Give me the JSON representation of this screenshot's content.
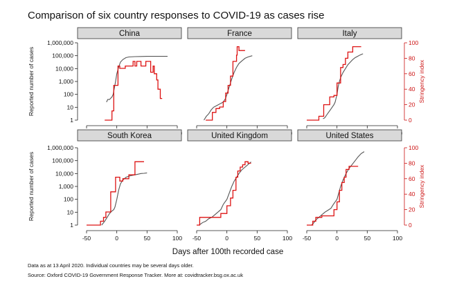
{
  "chart_data": {
    "type": "line",
    "title": "Comparison of six country responses to COVID-19 as cases rise",
    "xlabel": "Days after 100th recorded case",
    "ylabel_left": "Reported number of cases",
    "ylabel_right": "Stringency index",
    "x_ticks": [
      "-50",
      "0",
      "50",
      "100"
    ],
    "x_range": [
      -50,
      100
    ],
    "y_left_ticks": [
      "1",
      "10",
      "100",
      "1,000",
      "10,000",
      "100,000",
      "1,000,000"
    ],
    "y_left_range_log10": [
      0,
      6
    ],
    "y_right_ticks": [
      "0",
      "20",
      "40",
      "60",
      "80",
      "100"
    ],
    "y_right_range": [
      0,
      100
    ],
    "colors": {
      "cases": "#555555",
      "stringency": "#dd1111",
      "strip": "#d9d9d9",
      "right_axis": "#cc1111"
    },
    "panels": [
      {
        "name": "China",
        "cases": {
          "x": [
            -17,
            -15,
            -12,
            -10,
            -8,
            -6,
            -4,
            -2,
            0,
            3,
            6,
            10,
            15,
            20,
            30,
            40,
            50,
            60,
            70,
            84
          ],
          "y_log10": [
            1.4,
            1.6,
            1.6,
            1.7,
            1.8,
            2.0,
            2.5,
            3.0,
            3.6,
            4.1,
            4.5,
            4.7,
            4.85,
            4.9,
            4.93,
            4.94,
            4.95,
            4.95,
            4.95,
            4.95
          ]
        },
        "stringency": {
          "x": [
            -20,
            -8,
            -8,
            -5,
            -5,
            2,
            2,
            5,
            5,
            14,
            14,
            27,
            27,
            30,
            30,
            33,
            33,
            40,
            40,
            48,
            48,
            56,
            56,
            60,
            60,
            62,
            62,
            66,
            66,
            68,
            68,
            72,
            72,
            75
          ],
          "y": [
            0,
            0,
            12,
            12,
            45,
            45,
            70,
            70,
            67,
            67,
            70,
            70,
            76,
            76,
            70,
            70,
            76,
            76,
            70,
            70,
            76,
            76,
            62,
            62,
            70,
            70,
            60,
            60,
            52,
            52,
            40,
            40,
            28,
            28
          ]
        }
      },
      {
        "name": "France",
        "cases": {
          "x": [
            -38,
            -34,
            -30,
            -26,
            -22,
            -18,
            -14,
            -10,
            -6,
            -2,
            0,
            4,
            8,
            12,
            16,
            20,
            25,
            30,
            35,
            42
          ],
          "y_log10": [
            0.0,
            0.3,
            0.5,
            0.8,
            1.0,
            1.1,
            1.2,
            1.3,
            1.4,
            1.7,
            2.0,
            2.6,
            3.2,
            3.7,
            4.1,
            4.4,
            4.6,
            4.8,
            4.9,
            5.0
          ]
        },
        "stringency": {
          "x": [
            -35,
            -24,
            -24,
            -18,
            -18,
            -12,
            -12,
            -6,
            -6,
            -2,
            -2,
            2,
            2,
            6,
            6,
            10,
            10,
            16,
            16,
            17,
            17,
            20,
            20,
            30
          ],
          "y": [
            0,
            0,
            10,
            10,
            15,
            15,
            17,
            17,
            24,
            24,
            35,
            35,
            45,
            45,
            57,
            57,
            76,
            76,
            84,
            84,
            95,
            95,
            90,
            90
          ]
        }
      },
      {
        "name": "Italy",
        "cases": {
          "x": [
            -23,
            -20,
            -17,
            -14,
            -11,
            -8,
            -5,
            -3,
            0,
            2,
            4,
            6,
            10,
            14,
            18,
            22,
            26,
            30,
            34,
            38,
            43
          ],
          "y_log10": [
            0.1,
            0.2,
            0.4,
            0.6,
            0.8,
            1.0,
            1.2,
            1.4,
            2.0,
            2.6,
            3.0,
            3.3,
            3.7,
            4.0,
            4.3,
            4.5,
            4.7,
            4.85,
            4.95,
            5.05,
            5.15
          ]
        },
        "stringency": {
          "x": [
            -50,
            -30,
            -30,
            -22,
            -22,
            -12,
            -12,
            -5,
            -5,
            0,
            0,
            6,
            6,
            10,
            10,
            14,
            14,
            18,
            18,
            26,
            26,
            40
          ],
          "y": [
            0,
            0,
            5,
            5,
            20,
            20,
            30,
            30,
            32,
            32,
            48,
            48,
            68,
            68,
            72,
            72,
            80,
            80,
            88,
            88,
            95,
            95
          ]
        }
      },
      {
        "name": "South Korea",
        "cases": {
          "x": [
            -25,
            -20,
            -16,
            -12,
            -8,
            -5,
            -3,
            0,
            3,
            6,
            10,
            15,
            20,
            25,
            30,
            35,
            40,
            45,
            50
          ],
          "y_log10": [
            0.0,
            0.3,
            0.6,
            0.9,
            1.1,
            1.2,
            1.4,
            2.0,
            2.7,
            3.2,
            3.5,
            3.7,
            3.8,
            3.85,
            3.9,
            3.95,
            4.0,
            4.02,
            4.05
          ]
        },
        "stringency": {
          "x": [
            -50,
            -27,
            -27,
            -22,
            -22,
            -18,
            -18,
            -10,
            -10,
            -2,
            -2,
            5,
            5,
            10,
            10,
            20,
            20,
            30,
            30,
            45
          ],
          "y": [
            0,
            0,
            5,
            5,
            10,
            10,
            17,
            17,
            43,
            43,
            62,
            62,
            57,
            57,
            60,
            60,
            65,
            65,
            82,
            82
          ]
        }
      },
      {
        "name": "United Kingdom",
        "cases": {
          "x": [
            -46,
            -40,
            -35,
            -30,
            -25,
            -20,
            -15,
            -10,
            -6,
            -3,
            0,
            4,
            8,
            12,
            16,
            20,
            25,
            30,
            35,
            40
          ],
          "y_log10": [
            0.0,
            0.2,
            0.3,
            0.5,
            0.6,
            0.8,
            1.0,
            1.2,
            1.6,
            1.8,
            2.0,
            2.5,
            3.0,
            3.4,
            3.7,
            4.0,
            4.3,
            4.5,
            4.7,
            4.9
          ]
        },
        "stringency": {
          "x": [
            -50,
            -45,
            -45,
            -10,
            -10,
            0,
            0,
            6,
            6,
            10,
            10,
            15,
            15,
            18,
            18,
            22,
            22,
            26,
            26,
            30,
            30,
            35,
            35,
            40
          ],
          "y": [
            0,
            0,
            10,
            10,
            15,
            15,
            25,
            25,
            35,
            35,
            45,
            45,
            62,
            62,
            70,
            70,
            75,
            75,
            78,
            78,
            82,
            82,
            80,
            80
          ]
        }
      },
      {
        "name": "United States",
        "cases": {
          "x": [
            -42,
            -38,
            -35,
            -30,
            -25,
            -20,
            -15,
            -10,
            -6,
            -3,
            0,
            3,
            6,
            10,
            15,
            20,
            25,
            30,
            35,
            40,
            45
          ],
          "y_log10": [
            0.0,
            0.2,
            0.4,
            0.6,
            0.8,
            1.0,
            1.15,
            1.3,
            1.6,
            1.8,
            2.0,
            2.5,
            3.0,
            3.5,
            4.0,
            4.4,
            4.7,
            5.0,
            5.3,
            5.55,
            5.7
          ]
        },
        "stringency": {
          "x": [
            -50,
            -40,
            -40,
            -35,
            -35,
            -25,
            -25,
            -5,
            -5,
            0,
            0,
            4,
            4,
            8,
            8,
            12,
            12,
            15,
            15,
            20,
            20,
            35
          ],
          "y": [
            0,
            0,
            5,
            5,
            10,
            10,
            12,
            12,
            20,
            20,
            30,
            30,
            45,
            45,
            55,
            55,
            62,
            62,
            72,
            72,
            76,
            76
          ]
        }
      }
    ]
  },
  "notes": {
    "line1": "Data as at 13 April 2020. Individual countries may be several days older.",
    "line2": "Source: Oxford COVID-19 Government Response Tracker. More at: covidtracker.bsg.ox.ac.uk"
  }
}
